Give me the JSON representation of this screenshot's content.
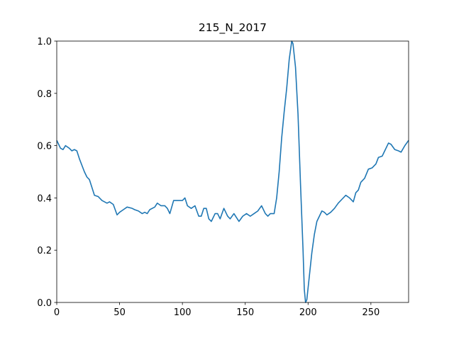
{
  "chart_data": {
    "type": "line",
    "title": "215_N_2017",
    "x": [
      0,
      3,
      5,
      7,
      10,
      12,
      14,
      16,
      18,
      22,
      24,
      26,
      28,
      30,
      33,
      36,
      38,
      40,
      42,
      45,
      48,
      50,
      53,
      56,
      60,
      62,
      65,
      68,
      70,
      72,
      74,
      78,
      80,
      83,
      86,
      88,
      90,
      93,
      96,
      100,
      102,
      104,
      107,
      110,
      113,
      115,
      117,
      119,
      121,
      123,
      126,
      128,
      130,
      133,
      136,
      138,
      141,
      145,
      148,
      151,
      154,
      157,
      160,
      163,
      166,
      168,
      170,
      173,
      175,
      177,
      179,
      181,
      183,
      185,
      187,
      188,
      190,
      192,
      194,
      196,
      197,
      198,
      199,
      201,
      203,
      205,
      207,
      209,
      211,
      213,
      215,
      218,
      221,
      224,
      227,
      230,
      233,
      236,
      238,
      240,
      242,
      245,
      248,
      251,
      254,
      256,
      259,
      261,
      264,
      266,
      269,
      272,
      274,
      277,
      280
    ],
    "values": [
      0.62,
      0.59,
      0.585,
      0.6,
      0.59,
      0.58,
      0.585,
      0.58,
      0.55,
      0.5,
      0.48,
      0.47,
      0.44,
      0.41,
      0.405,
      0.39,
      0.385,
      0.38,
      0.385,
      0.375,
      0.335,
      0.345,
      0.355,
      0.365,
      0.36,
      0.355,
      0.35,
      0.34,
      0.345,
      0.34,
      0.355,
      0.365,
      0.38,
      0.37,
      0.37,
      0.36,
      0.34,
      0.39,
      0.39,
      0.39,
      0.4,
      0.37,
      0.36,
      0.37,
      0.33,
      0.33,
      0.36,
      0.36,
      0.32,
      0.31,
      0.34,
      0.34,
      0.32,
      0.36,
      0.33,
      0.32,
      0.34,
      0.31,
      0.33,
      0.34,
      0.33,
      0.34,
      0.35,
      0.37,
      0.34,
      0.33,
      0.34,
      0.34,
      0.4,
      0.5,
      0.63,
      0.73,
      0.82,
      0.93,
      1.0,
      0.99,
      0.9,
      0.72,
      0.45,
      0.2,
      0.05,
      0.0,
      0.01,
      0.1,
      0.19,
      0.26,
      0.31,
      0.33,
      0.35,
      0.345,
      0.335,
      0.345,
      0.36,
      0.38,
      0.395,
      0.41,
      0.4,
      0.385,
      0.42,
      0.43,
      0.46,
      0.475,
      0.51,
      0.515,
      0.53,
      0.555,
      0.56,
      0.58,
      0.61,
      0.605,
      0.585,
      0.58,
      0.575,
      0.6,
      0.62
    ],
    "color": "#1f77b4",
    "xlim": [
      0,
      280
    ],
    "xticks": [
      0,
      50,
      100,
      150,
      200,
      250
    ],
    "ylim": [
      0,
      1
    ],
    "yticks": [
      {
        "value": 0,
        "label": "0.0"
      },
      {
        "value": 0.2,
        "label": "0.2"
      },
      {
        "value": 0.4,
        "label": "0.4"
      },
      {
        "value": 0.6,
        "label": "0.6"
      },
      {
        "value": 0.8,
        "label": "0.8"
      },
      {
        "value": 1,
        "label": "1.0"
      }
    ]
  }
}
